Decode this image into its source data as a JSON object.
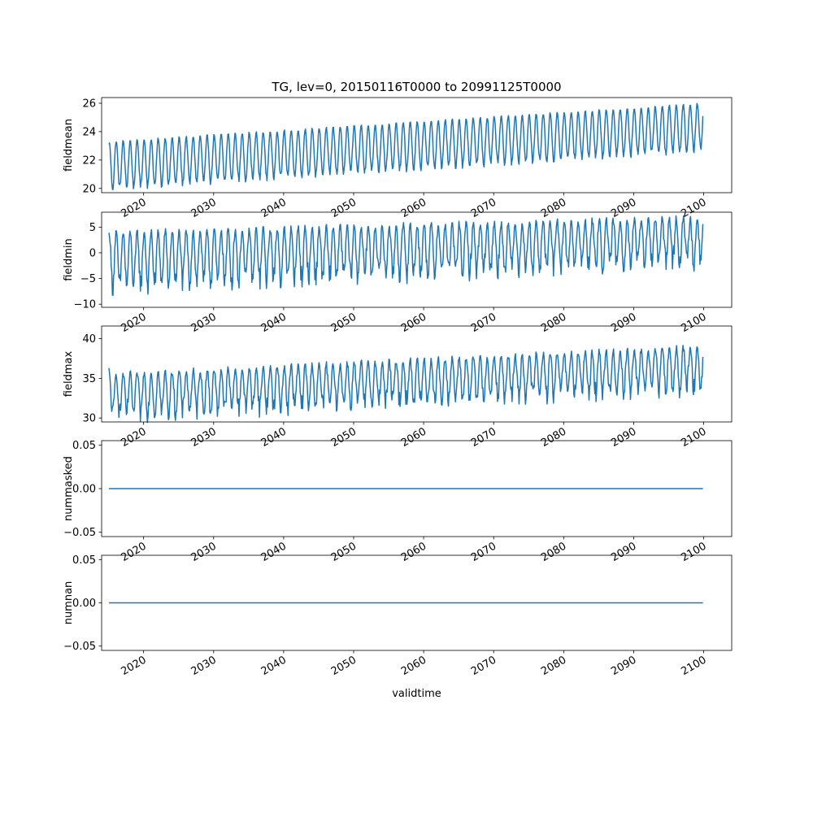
{
  "figure": {
    "title": "TG, lev=0, 20150116T0000 to 20991125T0000",
    "xlabel": "validtime",
    "line_color": "#1f77b4"
  },
  "chart_data": [
    {
      "type": "line",
      "ylabel": "fieldmean",
      "xlim": [
        2014.0,
        2104.0
      ],
      "ylim": [
        19.7,
        26.4
      ],
      "yticks": [
        20,
        22,
        24,
        26
      ],
      "yticklabels": [
        "20",
        "22",
        "24",
        "26"
      ],
      "xticks": [
        2020,
        2030,
        2040,
        2050,
        2060,
        2070,
        2080,
        2090,
        2100
      ],
      "xticklabels": [
        "2020",
        "2030",
        "2040",
        "2050",
        "2060",
        "2070",
        "2080",
        "2090",
        "2100"
      ],
      "series": [
        {
          "kind": "seasonal",
          "x_start": 2015.04,
          "x_end": 2099.9,
          "first_value": 23.1,
          "last_value": 25.1,
          "low_start": 20.0,
          "low_end": 22.7,
          "high_start": 23.3,
          "high_end": 26.0,
          "jitter": 0.25
        }
      ]
    },
    {
      "type": "line",
      "ylabel": "fieldmin",
      "xlim": [
        2014.0,
        2104.0
      ],
      "ylim": [
        -10.6,
        7.9
      ],
      "yticks": [
        -10,
        -5,
        0,
        5
      ],
      "yticklabels": [
        "−10",
        "−5",
        "0",
        "5"
      ],
      "xticks": [
        2020,
        2030,
        2040,
        2050,
        2060,
        2070,
        2080,
        2090,
        2100
      ],
      "xticklabels": [
        "2020",
        "2030",
        "2040",
        "2050",
        "2060",
        "2070",
        "2080",
        "2090",
        "2100"
      ],
      "series": [
        {
          "kind": "seasonal",
          "x_start": 2015.04,
          "x_end": 2099.9,
          "first_value": 3.9,
          "last_value": 5.6,
          "low_start": -6.5,
          "low_end": -1.5,
          "high_start": 4.0,
          "high_end": 6.8,
          "jitter": 2.2
        }
      ]
    },
    {
      "type": "line",
      "ylabel": "fieldmax",
      "xlim": [
        2014.0,
        2104.0
      ],
      "ylim": [
        29.5,
        41.6
      ],
      "yticks": [
        30,
        35,
        40
      ],
      "yticklabels": [
        "30",
        "35",
        "40"
      ],
      "xticks": [
        2020,
        2030,
        2040,
        2050,
        2060,
        2070,
        2080,
        2090,
        2100
      ],
      "xticklabels": [
        "2020",
        "2030",
        "2040",
        "2050",
        "2060",
        "2070",
        "2080",
        "2090",
        "2100"
      ],
      "series": [
        {
          "kind": "seasonal",
          "x_start": 2015.04,
          "x_end": 2099.9,
          "first_value": 36.3,
          "last_value": 37.7,
          "low_start": 30.4,
          "low_end": 33.8,
          "high_start": 35.5,
          "high_end": 39.0,
          "jitter": 1.3
        }
      ]
    },
    {
      "type": "line",
      "ylabel": "nummasked",
      "xlim": [
        2014.0,
        2104.0
      ],
      "ylim": [
        -0.055,
        0.055
      ],
      "yticks": [
        -0.05,
        0.0,
        0.05
      ],
      "yticklabels": [
        "−0.05",
        "0.00",
        "0.05"
      ],
      "xticks": [
        2020,
        2030,
        2040,
        2050,
        2060,
        2070,
        2080,
        2090,
        2100
      ],
      "xticklabels": [
        "2020",
        "2030",
        "2040",
        "2050",
        "2060",
        "2070",
        "2080",
        "2090",
        "2100"
      ],
      "series": [
        {
          "kind": "constant",
          "x_start": 2015.04,
          "x_end": 2099.9,
          "value": 0.0
        }
      ]
    },
    {
      "type": "line",
      "ylabel": "numnan",
      "xlim": [
        2014.0,
        2104.0
      ],
      "ylim": [
        -0.055,
        0.055
      ],
      "yticks": [
        -0.05,
        0.0,
        0.05
      ],
      "yticklabels": [
        "−0.05",
        "0.00",
        "0.05"
      ],
      "xticks": [
        2020,
        2030,
        2040,
        2050,
        2060,
        2070,
        2080,
        2090,
        2100
      ],
      "xticklabels": [
        "2020",
        "2030",
        "2040",
        "2050",
        "2060",
        "2070",
        "2080",
        "2090",
        "2100"
      ],
      "series": [
        {
          "kind": "constant",
          "x_start": 2015.04,
          "x_end": 2099.9,
          "value": 0.0
        }
      ]
    }
  ]
}
